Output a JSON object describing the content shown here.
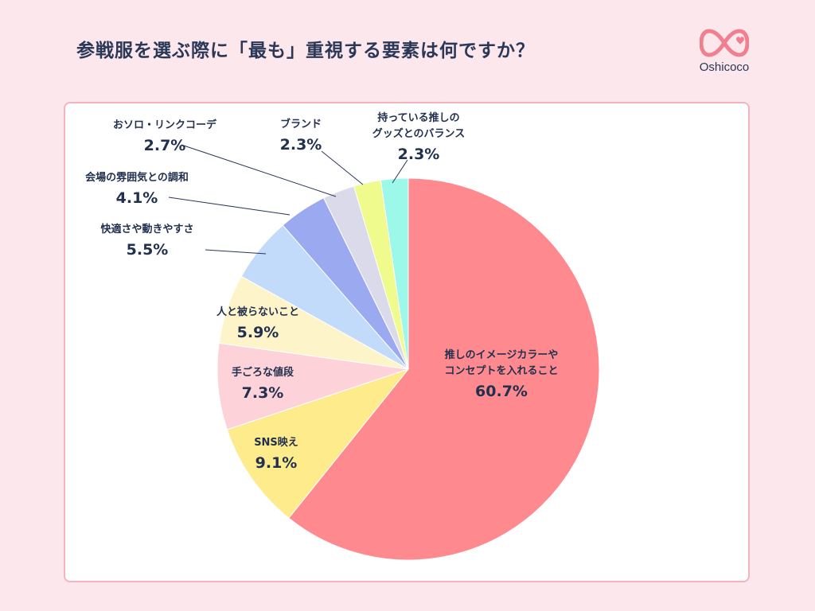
{
  "header": {
    "title": "参戦服を選ぶ際に「最も」重視する要素は何ですか？",
    "logo_text": "Oshicoco",
    "logo_icon": "infinity-heart-icon",
    "logo_color": "#f07f8f"
  },
  "chart_data": {
    "type": "pie",
    "title": "参戦服を選ぶ際に「最も」重視する要素は何ですか？",
    "unit": "%",
    "start": "12 o'clock",
    "direction": "clockwise",
    "slices": [
      {
        "label": [
          "推しのイメージカラーや",
          "コンセプトを入れること"
        ],
        "value": 60.7,
        "display": "60.7%",
        "color": "#fe8a8f"
      },
      {
        "label": [
          "SNS映え"
        ],
        "value": 9.1,
        "display": "9.1%",
        "color": "#fdeb8c"
      },
      {
        "label": [
          "手ごろな値段"
        ],
        "value": 7.3,
        "display": "7.3%",
        "color": "#fed2d9"
      },
      {
        "label": [
          "人と被らないこと"
        ],
        "value": 5.9,
        "display": "5.9%",
        "color": "#fdf4c9"
      },
      {
        "label": [
          "快適さや動きやすさ"
        ],
        "value": 5.5,
        "display": "5.5%",
        "color": "#c2dbfa"
      },
      {
        "label": [
          "会場の雰囲気との調和"
        ],
        "value": 4.1,
        "display": "4.1%",
        "color": "#9aa9f0"
      },
      {
        "label": [
          "おソロ・リンクコーデ"
        ],
        "value": 2.7,
        "display": "2.7%",
        "color": "#dadaea"
      },
      {
        "label": [
          "ブランド"
        ],
        "value": 2.3,
        "display": "2.3%",
        "color": "#f0fb8e"
      },
      {
        "label": [
          "持っている推しの",
          "グッズとのバランス"
        ],
        "value": 2.3,
        "display": "2.3%",
        "color": "#9cf8e8"
      }
    ]
  }
}
